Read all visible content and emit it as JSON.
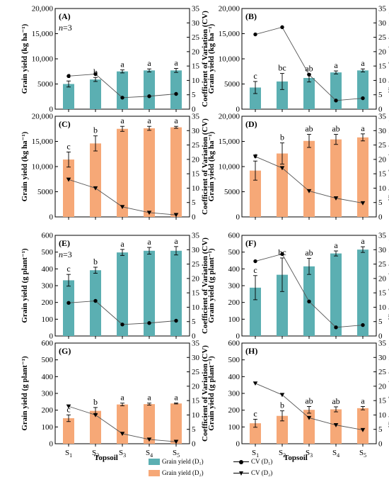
{
  "colors": {
    "d1": "#5bafb2",
    "d2": "#f6a877",
    "axis": "#000000",
    "cv_line": "#555555"
  },
  "shared_x_title": "Topsoil",
  "legend": {
    "d1_bar": "Grain yield (D₁)",
    "d2_bar": "Grain yield (D₂)",
    "d1_cv": "CV (D₁)",
    "d2_cv": "CV (D₂)"
  },
  "chart_data": [
    {
      "type": "bar",
      "panel_label": "(A)",
      "note": "n=3",
      "bar_color": "d1",
      "cv_marker": "circle",
      "categories": [
        "S1",
        "S2",
        "S3",
        "S4",
        "S5"
      ],
      "ylabel": "Grain yield (kg ha⁻¹)",
      "y2label": "Coefficient of Variation (CV)",
      "ylim": [
        0,
        20000
      ],
      "yticks": [
        0,
        5000,
        10000,
        15000,
        20000
      ],
      "ytick_labels": [
        "0",
        "5000",
        "10,000",
        "15,000",
        "20,000"
      ],
      "y2lim": [
        0,
        35
      ],
      "y2ticks": [
        0,
        5,
        10,
        15,
        20,
        25,
        30,
        35
      ],
      "series": [
        {
          "name": "Grain yield (D₁)",
          "values": [
            5000,
            5900,
            7500,
            7700,
            7700
          ],
          "errors": [
            600,
            400,
            300,
            300,
            400
          ]
        },
        {
          "name": "CV (D₁)",
          "values": [
            11.5,
            12.2,
            4.0,
            4.5,
            5.3
          ]
        }
      ],
      "letters": [
        "c",
        "b",
        "a",
        "a",
        "a"
      ]
    },
    {
      "type": "bar",
      "panel_label": "(B)",
      "bar_color": "d1",
      "cv_marker": "circle",
      "categories": [
        "S1",
        "S2",
        "S3",
        "S4",
        "S5"
      ],
      "ylabel": "Grain yield (kg ha⁻¹)",
      "y2label": "Coefficient of Variation (CV)",
      "ylim": [
        0,
        20000
      ],
      "yticks": [
        0,
        5000,
        10000,
        15000,
        20000
      ],
      "ytick_labels": [
        "0",
        "5000",
        "10,000",
        "15,000",
        "20,000"
      ],
      "y2lim": [
        0,
        35
      ],
      "y2ticks": [
        0,
        5,
        10,
        15,
        20,
        25,
        30,
        35
      ],
      "series": [
        {
          "name": "Grain yield (D₁)",
          "values": [
            4300,
            5500,
            6200,
            7300,
            7700
          ],
          "errors": [
            1200,
            1600,
            800,
            300,
            300
          ]
        },
        {
          "name": "CV (D₁)",
          "values": [
            26.0,
            28.5,
            12.0,
            3.0,
            3.8
          ]
        }
      ],
      "letters": [
        "c",
        "bc",
        "ab",
        "a",
        "a"
      ]
    },
    {
      "type": "bar",
      "panel_label": "(C)",
      "bar_color": "d2",
      "cv_marker": "triangle",
      "categories": [
        "S1",
        "S2",
        "S3",
        "S4",
        "S5"
      ],
      "ylabel": "Grain yield (kg ha⁻¹)",
      "y2label": "Coefficient of Variation (CV)",
      "ylim": [
        0,
        20000
      ],
      "yticks": [
        0,
        5000,
        10000,
        15000,
        20000
      ],
      "ytick_labels": [
        "0",
        "5000",
        "10,000",
        "15,000",
        "20,000"
      ],
      "y2lim": [
        0,
        35
      ],
      "y2ticks": [
        0,
        5,
        10,
        15,
        20,
        25,
        30,
        35
      ],
      "series": [
        {
          "name": "Grain yield (D₂)",
          "values": [
            11400,
            14600,
            17500,
            17600,
            17800
          ],
          "errors": [
            1500,
            1500,
            500,
            400,
            200
          ]
        },
        {
          "name": "CV (D₂)",
          "values": [
            13.0,
            10.0,
            3.5,
            1.5,
            0.7
          ]
        }
      ],
      "letters": [
        "c",
        "b",
        "a",
        "a",
        "a"
      ]
    },
    {
      "type": "bar",
      "panel_label": "(D)",
      "bar_color": "d2",
      "cv_marker": "triangle",
      "categories": [
        "S1",
        "S2",
        "S3",
        "S4",
        "S5"
      ],
      "ylabel": "Grain yield (kg ha⁻¹)",
      "y2label": "Coefficient of Variation (CV)",
      "ylim": [
        0,
        20000
      ],
      "yticks": [
        0,
        5000,
        10000,
        15000,
        20000
      ],
      "ytick_labels": [
        "0",
        "5000",
        "10,000",
        "15,000",
        "20,000"
      ],
      "y2lim": [
        0,
        35
      ],
      "y2ticks": [
        0,
        5,
        10,
        15,
        20,
        25,
        30,
        35
      ],
      "series": [
        {
          "name": "Grain yield (D₂)",
          "values": [
            9200,
            12600,
            15100,
            15400,
            15800
          ],
          "errors": [
            1900,
            2100,
            1300,
            1000,
            700
          ]
        },
        {
          "name": "CV (D₂)",
          "values": [
            21.0,
            17.0,
            9.0,
            6.5,
            4.8
          ]
        }
      ],
      "letters": [
        "c",
        "b",
        "ab",
        "ab",
        "a"
      ]
    },
    {
      "type": "bar",
      "panel_label": "(E)",
      "note": "n=3",
      "bar_color": "d1",
      "cv_marker": "circle",
      "categories": [
        "S1",
        "S2",
        "S3",
        "S4",
        "S5"
      ],
      "ylabel": "Grain yield (g plant⁻¹)",
      "y2label": "Coefficient of Variation (CV)",
      "ylim": [
        0,
        600
      ],
      "yticks": [
        0,
        100,
        200,
        300,
        400,
        500,
        600
      ],
      "ytick_labels": [
        "0",
        "100",
        "200",
        "300",
        "400",
        "500",
        "600"
      ],
      "y2lim": [
        0,
        35
      ],
      "y2ticks": [
        0,
        5,
        10,
        15,
        20,
        25,
        30,
        35
      ],
      "series": [
        {
          "name": "Grain yield (D₁)",
          "values": [
            332,
            392,
            498,
            508,
            508
          ],
          "errors": [
            35,
            18,
            18,
            20,
            25
          ]
        },
        {
          "name": "CV (D₁)",
          "values": [
            11.5,
            12.2,
            4.0,
            4.5,
            5.3
          ]
        }
      ],
      "letters": [
        "c",
        "b",
        "a",
        "a",
        "a"
      ]
    },
    {
      "type": "bar",
      "panel_label": "(F)",
      "bar_color": "d1",
      "cv_marker": "circle",
      "categories": [
        "S1",
        "S2",
        "S3",
        "S4",
        "S5"
      ],
      "ylabel": "Grain yield (g plant⁻¹)",
      "y2label": "Coefficient of Variation (CV)",
      "ylim": [
        0,
        600
      ],
      "yticks": [
        0,
        100,
        200,
        300,
        400,
        500,
        600
      ],
      "ytick_labels": [
        "0",
        "100",
        "200",
        "300",
        "400",
        "500",
        "600"
      ],
      "y2lim": [
        0,
        35
      ],
      "y2ticks": [
        0,
        5,
        10,
        15,
        20,
        25,
        30,
        35
      ],
      "series": [
        {
          "name": "Grain yield (D₁)",
          "values": [
            288,
            365,
            415,
            492,
            515
          ],
          "errors": [
            72,
            100,
            48,
            15,
            17
          ]
        },
        {
          "name": "CV (D₁)",
          "values": [
            26.0,
            28.5,
            12.0,
            3.0,
            3.8
          ]
        }
      ],
      "letters": [
        "c",
        "bc",
        "ab",
        "a",
        "a"
      ]
    },
    {
      "type": "bar",
      "panel_label": "(G)",
      "bar_color": "d2",
      "cv_marker": "triangle",
      "categories": [
        "S1",
        "S2",
        "S3",
        "S4",
        "S5"
      ],
      "ylabel": "Grain yield (g plant⁻¹)",
      "y2label": "Coefficient of Variation (CV)",
      "ylim": [
        0,
        600
      ],
      "yticks": [
        0,
        100,
        200,
        300,
        400,
        500,
        600
      ],
      "ytick_labels": [
        "0",
        "100",
        "200",
        "300",
        "400",
        "500",
        "600"
      ],
      "y2lim": [
        0,
        35
      ],
      "y2ticks": [
        0,
        5,
        10,
        15,
        20,
        25,
        30,
        35
      ],
      "series": [
        {
          "name": "Grain yield (D₂)",
          "values": [
            152,
            196,
            234,
            236,
            240
          ],
          "errors": [
            20,
            20,
            8,
            6,
            3
          ]
        },
        {
          "name": "CV (D₂)",
          "values": [
            13.0,
            10.0,
            3.5,
            1.5,
            0.7
          ]
        }
      ],
      "letters": [
        "c",
        "b",
        "a",
        "a",
        "a"
      ]
    },
    {
      "type": "bar",
      "panel_label": "(H)",
      "bar_color": "d2",
      "cv_marker": "triangle",
      "categories": [
        "S1",
        "S2",
        "S3",
        "S4",
        "S5"
      ],
      "ylabel": "Grain yield (g plant⁻¹)",
      "y2label": "Coefficient of Variation (CV)",
      "ylim": [
        0,
        600
      ],
      "yticks": [
        0,
        100,
        200,
        300,
        400,
        500,
        600
      ],
      "ytick_labels": [
        "0",
        "100",
        "200",
        "300",
        "400",
        "500",
        "600"
      ],
      "y2lim": [
        0,
        35
      ],
      "y2ticks": [
        0,
        5,
        10,
        15,
        20,
        25,
        30,
        35
      ],
      "series": [
        {
          "name": "Grain yield (D₂)",
          "values": [
            122,
            166,
            202,
            205,
            212
          ],
          "errors": [
            24,
            30,
            20,
            15,
            10
          ]
        },
        {
          "name": "CV (D₂)",
          "values": [
            21.0,
            17.0,
            9.0,
            6.5,
            4.8
          ]
        }
      ],
      "letters": [
        "c",
        "b",
        "ab",
        "ab",
        "a"
      ]
    }
  ]
}
